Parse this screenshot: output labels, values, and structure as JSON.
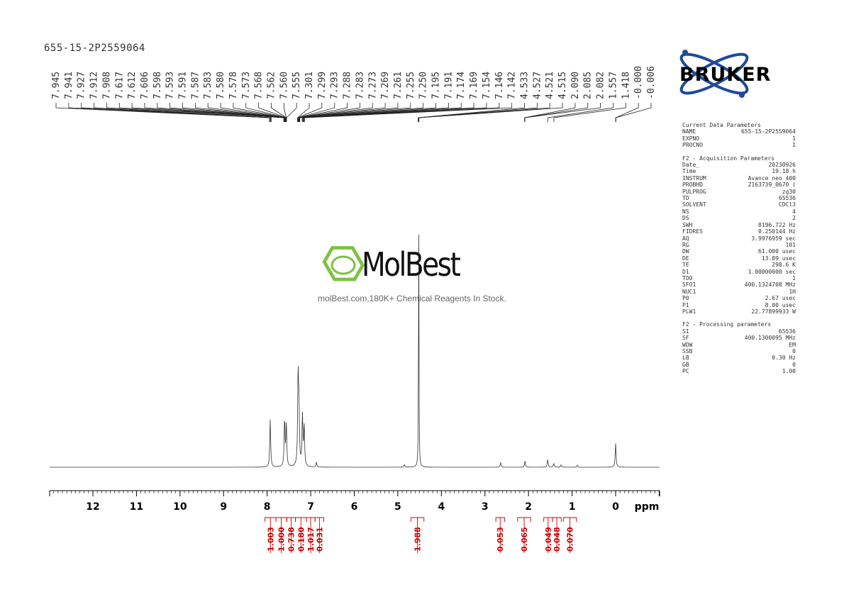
{
  "sample_name": "655-15-2P2559064",
  "brand_logo": "BRUKER",
  "watermark": {
    "brand": "MolBest",
    "tagline": "molBest.com,180K+ Chemical Reagents In Stock."
  },
  "parameters": {
    "current": {
      "title": "Current Data Parameters",
      "rows": [
        {
          "k": "NAME",
          "v": "655-15-2P2559064"
        },
        {
          "k": "EXPNO",
          "v": "1"
        },
        {
          "k": "PROCNO",
          "v": "1"
        }
      ]
    },
    "acquisition": {
      "title": "F2 - Acquisition Parameters",
      "rows": [
        {
          "k": "Date_",
          "v": "20230926"
        },
        {
          "k": "Time",
          "v": "19.18 h"
        },
        {
          "k": "INSTRUM",
          "v": "Avance neo 400"
        },
        {
          "k": "PROBHD",
          "v": "Z163739_0670 ("
        },
        {
          "k": "PULPROG",
          "v": "zg30"
        },
        {
          "k": "TD",
          "v": "65536"
        },
        {
          "k": "SOLVENT",
          "v": "CDCl3"
        },
        {
          "k": "NS",
          "v": "4"
        },
        {
          "k": "DS",
          "v": "2"
        },
        {
          "k": "SWH",
          "v": "8196.722 Hz"
        },
        {
          "k": "FIDRES",
          "v": "0.250144 Hz"
        },
        {
          "k": "AQ",
          "v": "3.9976959 sec"
        },
        {
          "k": "RG",
          "v": "101"
        },
        {
          "k": "DW",
          "v": "61.000 usec"
        },
        {
          "k": "DE",
          "v": "13.89 usec"
        },
        {
          "k": "TE",
          "v": "298.6 K"
        },
        {
          "k": "D1",
          "v": "1.00000000 sec"
        },
        {
          "k": "TD0",
          "v": "1"
        },
        {
          "k": "SFO1",
          "v": "400.1324708 MHz"
        },
        {
          "k": "NUC1",
          "v": "1H"
        },
        {
          "k": "P0",
          "v": "2.67 usec"
        },
        {
          "k": "P1",
          "v": "8.00 usec"
        },
        {
          "k": "PLW1",
          "v": "22.77899933 W"
        }
      ]
    },
    "processing": {
      "title": "F2 - Processing parameters",
      "rows": [
        {
          "k": "SI",
          "v": "65536"
        },
        {
          "k": "SF",
          "v": "400.1300095 MHz"
        },
        {
          "k": "WDW",
          "v": "EM"
        },
        {
          "k": "SSB",
          "v": "0"
        },
        {
          "k": "LB",
          "v": "0.30 Hz"
        },
        {
          "k": "GB",
          "v": "0"
        },
        {
          "k": "PC",
          "v": "1.00"
        }
      ]
    }
  },
  "chart_data": {
    "type": "line",
    "title": "",
    "xlabel": "ppm",
    "ylabel": "",
    "x_reversed": true,
    "xlim": [
      13,
      -1
    ],
    "xticks": [
      12,
      11,
      10,
      9,
      8,
      7,
      6,
      5,
      4,
      3,
      2,
      1,
      0
    ],
    "grid": false,
    "peak_labels": [
      "7.945",
      "7.941",
      "7.927",
      "7.912",
      "7.908",
      "7.617",
      "7.612",
      "7.606",
      "7.598",
      "7.593",
      "7.591",
      "7.587",
      "7.583",
      "7.580",
      "7.578",
      "7.573",
      "7.568",
      "7.562",
      "7.560",
      "7.555",
      "7.301",
      "7.299",
      "7.293",
      "7.288",
      "7.283",
      "7.273",
      "7.269",
      "7.261",
      "7.255",
      "7.250",
      "7.195",
      "7.191",
      "7.174",
      "7.169",
      "7.154",
      "7.146",
      "7.142",
      "4.533",
      "4.527",
      "4.521",
      "4.515",
      "2.090",
      "2.085",
      "2.082",
      "1.557",
      "1.418",
      "-0.000",
      "-0.006"
    ],
    "peaks": [
      {
        "ppm": 7.93,
        "height": 0.19
      },
      {
        "ppm": 7.6,
        "height": 0.185
      },
      {
        "ppm": 7.56,
        "height": 0.17
      },
      {
        "ppm": 7.29,
        "height": 0.35
      },
      {
        "ppm": 7.27,
        "height": 0.22
      },
      {
        "ppm": 7.19,
        "height": 0.2
      },
      {
        "ppm": 7.15,
        "height": 0.16
      },
      {
        "ppm": 6.87,
        "height": 0.02
      },
      {
        "ppm": 4.52,
        "height": 1.0
      },
      {
        "ppm": 4.85,
        "height": 0.01
      },
      {
        "ppm": 2.64,
        "height": 0.018
      },
      {
        "ppm": 2.08,
        "height": 0.025
      },
      {
        "ppm": 1.56,
        "height": 0.03
      },
      {
        "ppm": 1.42,
        "height": 0.015
      },
      {
        "ppm": 1.25,
        "height": 0.01
      },
      {
        "ppm": 0.88,
        "height": 0.008
      },
      {
        "ppm": 0.0,
        "height": 0.095
      }
    ],
    "integrals": [
      {
        "from": 8.05,
        "to": 7.8,
        "value": "1.003"
      },
      {
        "from": 7.8,
        "to": 7.55,
        "value": "1.000"
      },
      {
        "from": 7.55,
        "to": 7.35,
        "value": "0.738"
      },
      {
        "from": 7.35,
        "to": 7.1,
        "value": "0.180"
      },
      {
        "from": 7.1,
        "to": 6.9,
        "value": "1.017"
      },
      {
        "from": 6.9,
        "to": 6.7,
        "value": "0.031"
      },
      {
        "from": 4.7,
        "to": 4.4,
        "value": "1.988"
      },
      {
        "from": 2.75,
        "to": 2.55,
        "value": "0.053"
      },
      {
        "from": 2.25,
        "to": 1.95,
        "value": "0.065"
      },
      {
        "from": 1.65,
        "to": 1.45,
        "value": "0.049"
      },
      {
        "from": 1.45,
        "to": 1.25,
        "value": "0.048"
      },
      {
        "from": 1.2,
        "to": 0.9,
        "value": "0.070"
      }
    ]
  }
}
